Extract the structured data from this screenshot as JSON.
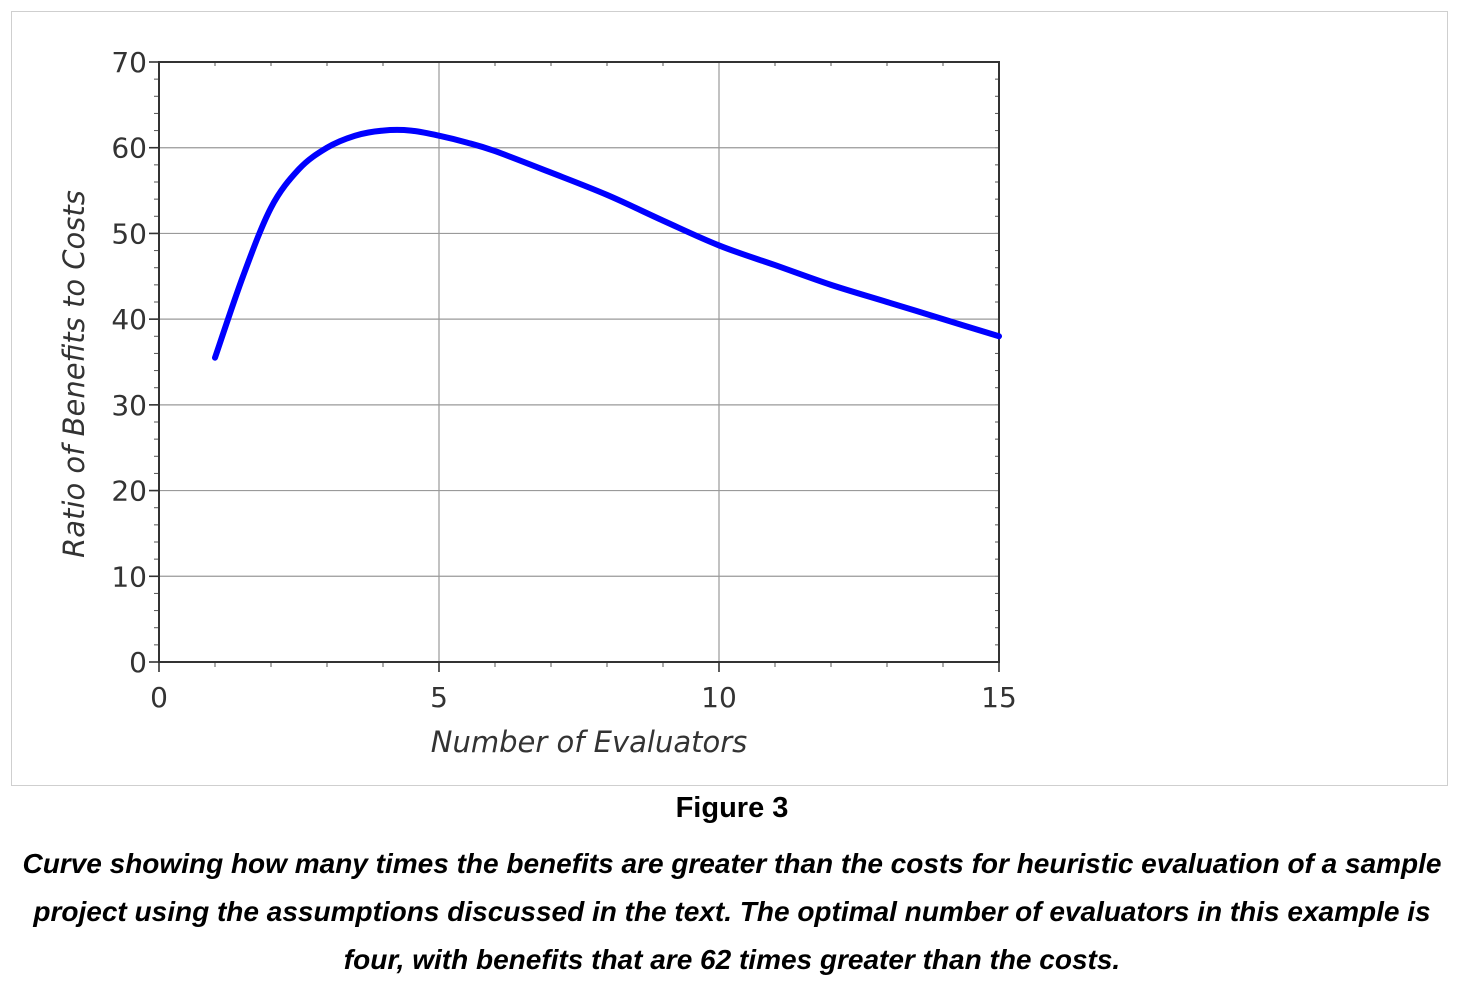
{
  "figure": {
    "label": "Figure 3",
    "caption": "Curve showing how many times the benefits are greater than the costs for heuristic evaluation of a sample project using the assumptions discussed in the text. The optimal number of evaluators in this example is four, with benefits that are 62 times greater than the costs."
  },
  "chart_data": {
    "type": "line",
    "title": "",
    "xlabel": "Number of Evaluators",
    "ylabel": "Ratio of Benefits to Costs",
    "xlim": [
      0,
      15
    ],
    "ylim": [
      0,
      70
    ],
    "x_ticks": [
      0,
      5,
      10,
      15
    ],
    "y_ticks": [
      0,
      10,
      20,
      30,
      40,
      50,
      60,
      70
    ],
    "grid": true,
    "legend": "none",
    "line_color": "#0000ff",
    "series": [
      {
        "x": [
          1,
          1.5,
          2,
          2.5,
          3,
          3.5,
          4,
          4.5,
          5,
          5.5,
          6,
          7,
          8,
          9,
          10,
          11,
          12,
          13,
          14,
          15
        ],
        "y": [
          35.5,
          45,
          53,
          57.5,
          60,
          61.4,
          62,
          62,
          61.4,
          60.6,
          59.6,
          57.1,
          54.5,
          51.5,
          48.6,
          46.3,
          44,
          42,
          40,
          38
        ]
      }
    ]
  }
}
